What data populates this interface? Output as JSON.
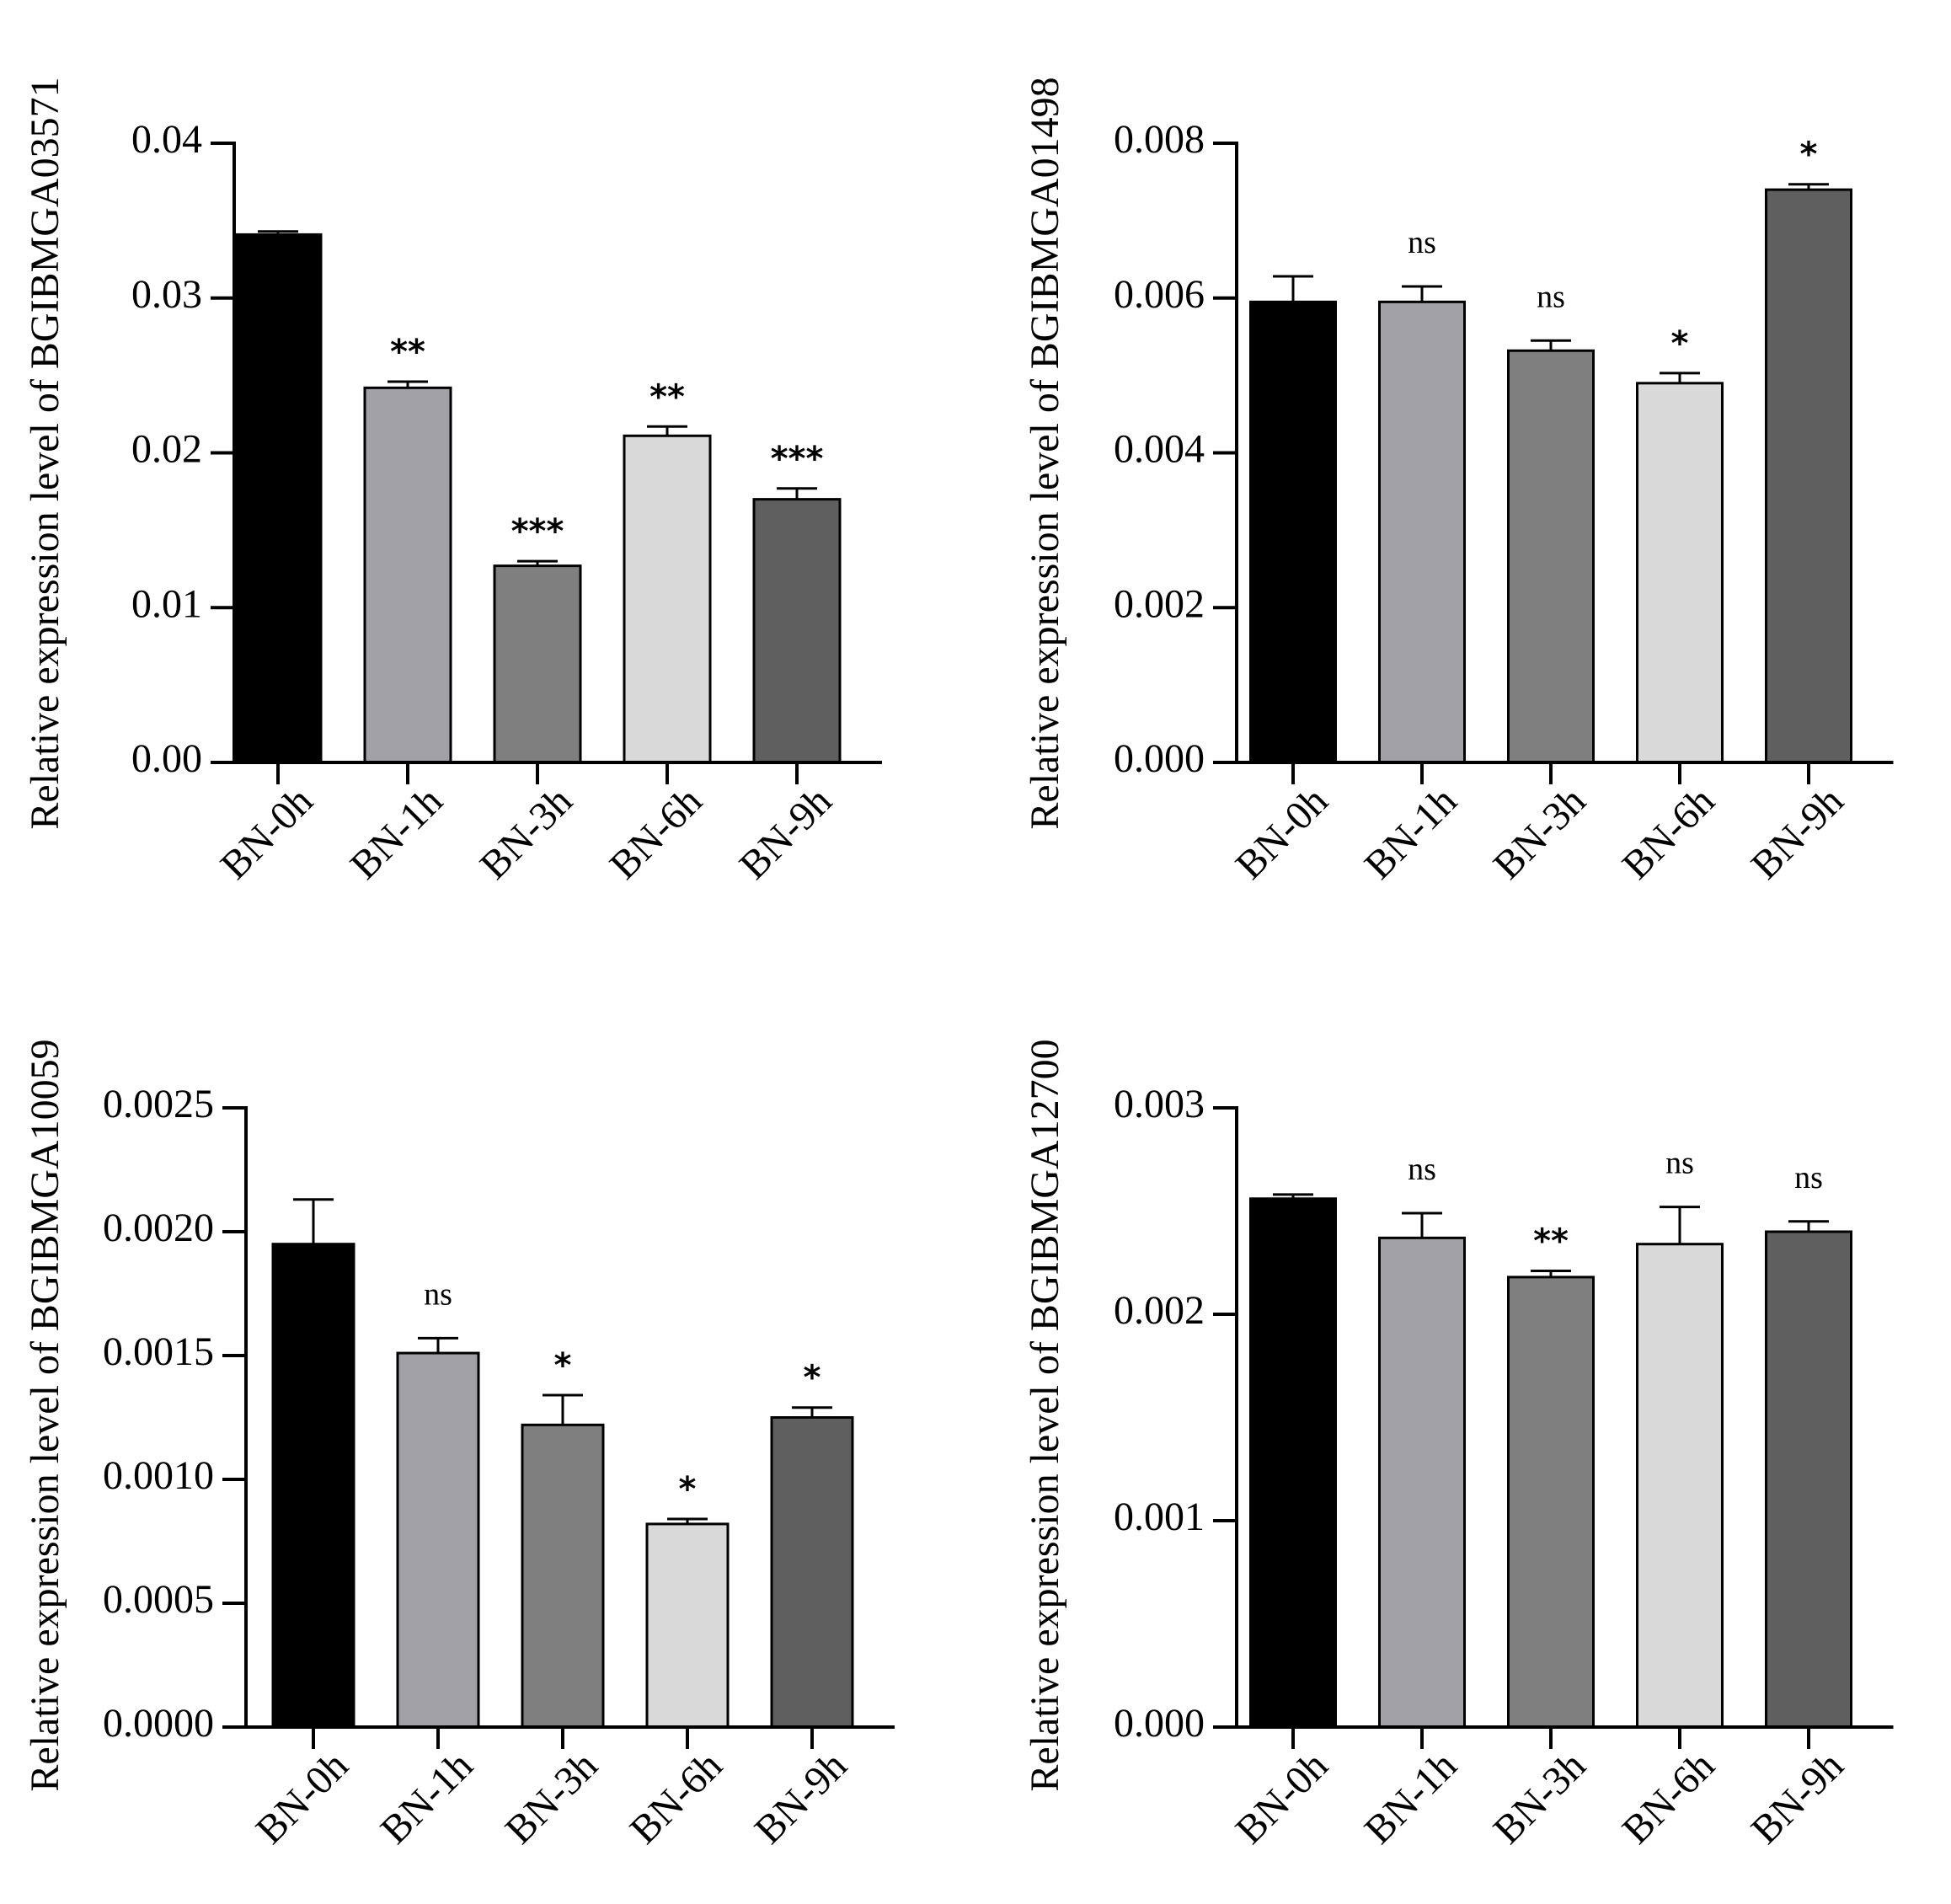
{
  "chart_data": [
    {
      "type": "bar",
      "ylabel": "Relative expression level of BGIBMGA03571",
      "categories": [
        "BN-0h",
        "BN-1h",
        "BN-3h",
        "BN-6h",
        "BN-9h"
      ],
      "values": [
        0.0341,
        0.0242,
        0.0127,
        0.0211,
        0.017
      ],
      "errors": [
        0.0002,
        0.0004,
        0.0003,
        0.0006,
        0.0007
      ],
      "significance": [
        "",
        "**",
        "***",
        "**",
        "***"
      ],
      "ylim": [
        0,
        0.04
      ],
      "yticks": [
        0,
        0.01,
        0.02,
        0.03,
        0.04
      ],
      "ytick_labels": [
        "0.00",
        "0.01",
        "0.02",
        "0.03",
        "0.04"
      ],
      "colors": [
        "#000000",
        "#a2a2a6",
        "#7f7f7f",
        "#d9d9d9",
        "#5f5f5f"
      ]
    },
    {
      "type": "bar",
      "ylabel": "Relative expression level of BGIBMGA01498",
      "categories": [
        "BN-0h",
        "BN-1h",
        "BN-3h",
        "BN-6h",
        "BN-9h"
      ],
      "values": [
        0.00595,
        0.00595,
        0.00532,
        0.0049,
        0.0074
      ],
      "errors": [
        0.00033,
        0.0002,
        0.00013,
        0.00013,
        7e-05
      ],
      "significance": [
        "",
        "ns",
        "ns",
        "*",
        "*"
      ],
      "ylim": [
        0,
        0.008
      ],
      "yticks": [
        0,
        0.002,
        0.004,
        0.006,
        0.008
      ],
      "ytick_labels": [
        "0.000",
        "0.002",
        "0.004",
        "0.006",
        "0.008"
      ],
      "colors": [
        "#000000",
        "#a2a2a6",
        "#7f7f7f",
        "#d9d9d9",
        "#5f5f5f"
      ]
    },
    {
      "type": "bar",
      "ylabel": "Relative expression level of BGIBMGA10059",
      "categories": [
        "BN-0h",
        "BN-1h",
        "BN-3h",
        "BN-6h",
        "BN-9h"
      ],
      "values": [
        0.00195,
        0.00151,
        0.00122,
        0.00082,
        0.00125
      ],
      "errors": [
        0.00018,
        6e-05,
        0.00012,
        2e-05,
        4e-05
      ],
      "significance": [
        "",
        "ns",
        "*",
        "*",
        "*"
      ],
      "ylim": [
        0,
        0.0025
      ],
      "yticks": [
        0,
        0.0005,
        0.001,
        0.0015,
        0.002,
        0.0025
      ],
      "ytick_labels": [
        "0.0000",
        "0.0005",
        "0.0010",
        "0.0015",
        "0.0020",
        "0.0025"
      ],
      "colors": [
        "#000000",
        "#a2a2a6",
        "#7f7f7f",
        "#d9d9d9",
        "#5f5f5f"
      ]
    },
    {
      "type": "bar",
      "ylabel": "Relative expression level of BGIBMGA12700",
      "categories": [
        "BN-0h",
        "BN-1h",
        "BN-3h",
        "BN-6h",
        "BN-9h"
      ],
      "values": [
        0.00256,
        0.00237,
        0.00218,
        0.00234,
        0.0024
      ],
      "errors": [
        2e-05,
        0.00012,
        3e-05,
        0.00018,
        5e-05
      ],
      "significance": [
        "",
        "ns",
        "**",
        "ns",
        "ns"
      ],
      "ylim": [
        0,
        0.003
      ],
      "yticks": [
        0,
        0.001,
        0.002,
        0.003
      ],
      "ytick_labels": [
        "0.000",
        "0.001",
        "0.002",
        "0.003"
      ],
      "colors": [
        "#000000",
        "#a2a2a6",
        "#7f7f7f",
        "#d9d9d9",
        "#5f5f5f"
      ]
    }
  ]
}
